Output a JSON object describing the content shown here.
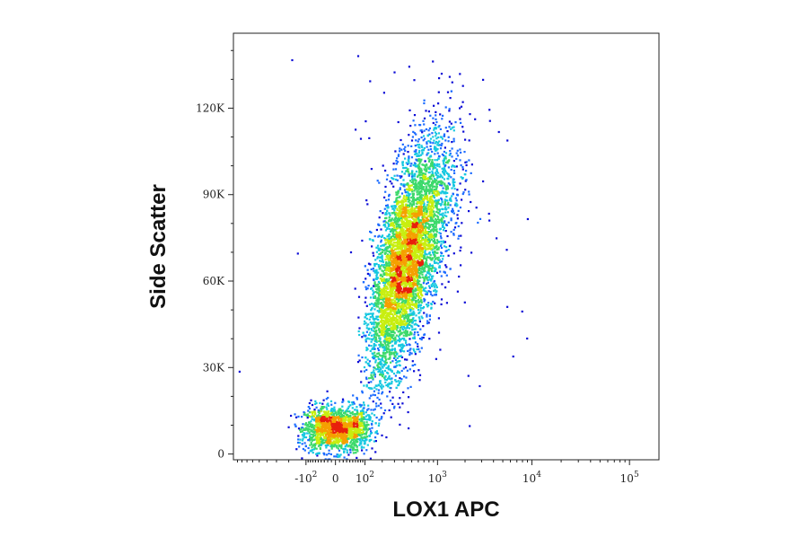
{
  "chart_data": {
    "type": "scatter",
    "style": "flow-cytometry density dot plot (pseudocolor)",
    "xlabel": "LOX1 APC",
    "ylabel": "Side Scatter",
    "x_scale": "biexponential (linear near 0, logarithmic above ~10^2)",
    "y_scale": "linear",
    "xlim": [
      -1000,
      200000
    ],
    "ylim": [
      -2000,
      146000
    ],
    "x_ticks": [
      {
        "value": -100,
        "base": "-10",
        "exp": "2"
      },
      {
        "value": 0,
        "base": "0",
        "exp": ""
      },
      {
        "value": 100,
        "base": "10",
        "exp": "2"
      },
      {
        "value": 1000,
        "base": "10",
        "exp": "3"
      },
      {
        "value": 10000,
        "base": "10",
        "exp": "4"
      },
      {
        "value": 100000,
        "base": "10",
        "exp": "5"
      }
    ],
    "y_ticks": [
      {
        "value": 0,
        "label": "0"
      },
      {
        "value": 30000,
        "label": "30K"
      },
      {
        "value": 60000,
        "label": "60K"
      },
      {
        "value": 90000,
        "label": "90K"
      },
      {
        "value": 120000,
        "label": "120K"
      }
    ],
    "grid": false,
    "density_colors": [
      "#0b0bd6",
      "#1b6bff",
      "#16c8e0",
      "#3cd96b",
      "#c8ee10",
      "#f5a000",
      "#e8200c"
    ],
    "populations": [
      {
        "name": "negative cluster",
        "x_center": 0,
        "x_spread_decades": 0.45,
        "y_center": 9000,
        "y_spread": 4000,
        "relative_size": 0.22
      },
      {
        "name": "positive population",
        "x_center": 420,
        "x_spread_decades": 0.26,
        "y_center": 68000,
        "y_spread": 16000,
        "relative_size": 0.78
      }
    ]
  }
}
